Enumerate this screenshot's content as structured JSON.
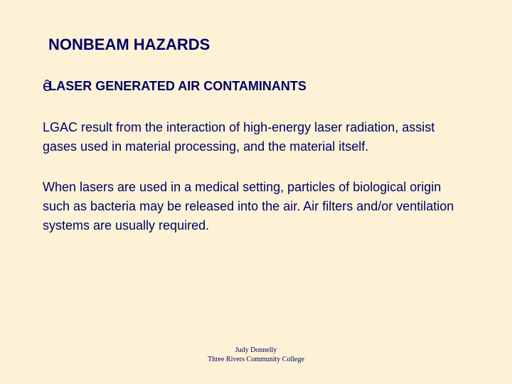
{
  "slide": {
    "background_color": "#fdf2d6",
    "text_color": "#000066",
    "title": "NONBEAM HAZARDS",
    "bullet_glyph": "ê",
    "subtitle": "LASER GENERATED AIR CONTAMINANTS",
    "paragraph1": "LGAC result from the interaction of high-energy laser radiation, assist gases used in material processing, and the material itself.",
    "paragraph2": "When lasers are used in a medical setting, particles of biological origin such as bacteria may be released into the air. Air filters and/or ventilation systems are usually required.",
    "footer_author": "Judy Donnelly",
    "footer_org": "Three Rivers Community College"
  }
}
